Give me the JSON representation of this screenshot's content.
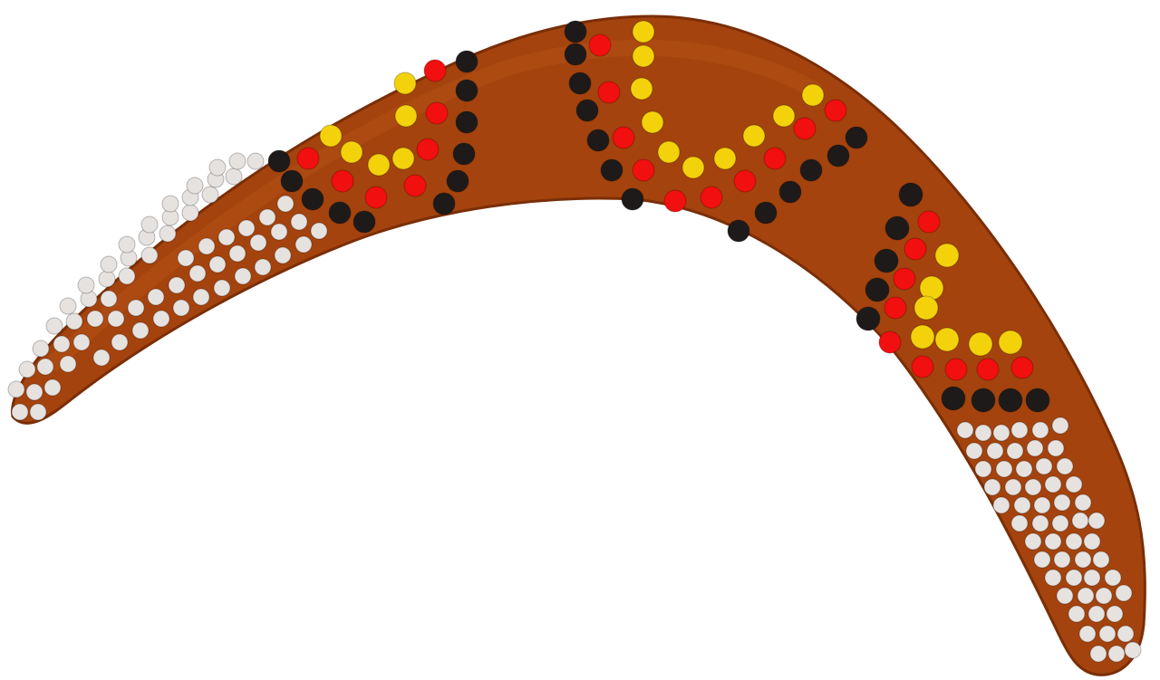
{
  "illustration": {
    "subject": "boomerang",
    "colors": {
      "wood": "#a4430d",
      "wood_dark": "#7a2e07",
      "wood_highlight": "#c2611f",
      "dot_white": "#e6e2e0",
      "dot_black": "#1e1a1a",
      "dot_red": "#f20f0f",
      "dot_yellow": "#f3d20b"
    }
  }
}
